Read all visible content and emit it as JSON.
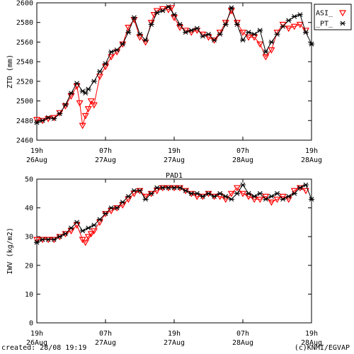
{
  "footer": {
    "created": "created: 28/08 19:19",
    "credit": "(c)KNMI/EGVAP"
  },
  "colors": {
    "series_a": "#ff0000",
    "series_b": "#000000"
  },
  "chart_data": [
    {
      "type": "line",
      "title": "",
      "ylabel": "ZTD (mm)",
      "xlabel": "",
      "xlim": [
        0,
        48
      ],
      "ylim": [
        2460,
        2600
      ],
      "yticks": [
        2460,
        2480,
        2500,
        2520,
        2540,
        2560,
        2580,
        2600
      ],
      "xticks": [
        {
          "x": 0,
          "top": "19h",
          "bottom": "26Aug"
        },
        {
          "x": 12,
          "top": "07h",
          "bottom": "27Aug"
        },
        {
          "x": 24,
          "top": "19h",
          "bottom": "27Aug"
        },
        {
          "x": 36,
          "top": "07h",
          "bottom": "28Aug"
        },
        {
          "x": 48,
          "top": "19h",
          "bottom": "28Aug"
        }
      ],
      "legend": {
        "placement": "top-right",
        "entries": [
          {
            "name": "ASI_",
            "marker": "triangle-down",
            "color": "#ff0000"
          },
          {
            "name": "_PT_",
            "marker": "asterisk",
            "color": "#000000"
          }
        ]
      },
      "series": [
        {
          "name": "ASI_",
          "marker": "triangle-down",
          "color": "#ff0000",
          "x": [
            0,
            1,
            2,
            3,
            4,
            5,
            6,
            7,
            7.5,
            8,
            8.5,
            9,
            9.5,
            10,
            11,
            12,
            13,
            14,
            15,
            16,
            17,
            18,
            19,
            20,
            20.5,
            21,
            22,
            23,
            23.5,
            24,
            25,
            26,
            27,
            28,
            29,
            30,
            31,
            32,
            33,
            34,
            35,
            36,
            37,
            38,
            39,
            40,
            41,
            42,
            43,
            44,
            45,
            46,
            47
          ],
          "y": [
            2481,
            2480,
            2482,
            2483,
            2488,
            2495,
            2505,
            2515,
            2498,
            2475,
            2485,
            2492,
            2500,
            2496,
            2525,
            2535,
            2545,
            2550,
            2558,
            2575,
            2583,
            2565,
            2560,
            2580,
            2588,
            2592,
            2594,
            2593,
            2595,
            2585,
            2575,
            2572,
            2570,
            2572,
            2568,
            2565,
            2562,
            2570,
            2580,
            2592,
            2580,
            2570,
            2565,
            2565,
            2558,
            2545,
            2552,
            2570,
            2578,
            2574,
            2576,
            2578,
            2572
          ]
        },
        {
          "name": "_PT_",
          "marker": "asterisk",
          "color": "#000000",
          "x": [
            0,
            1,
            2,
            3,
            4,
            5,
            6,
            7,
            8,
            8.5,
            9,
            10,
            11,
            12,
            13,
            14,
            15,
            16,
            17,
            18,
            19,
            20,
            21,
            22,
            23,
            24,
            25,
            26,
            27,
            28,
            29,
            30,
            31,
            32,
            33,
            34,
            35,
            36,
            37,
            38,
            39,
            40,
            41,
            42,
            43,
            44,
            45,
            46,
            47,
            48
          ],
          "y": [
            2478,
            2480,
            2483,
            2482,
            2487,
            2496,
            2508,
            2518,
            2510,
            2508,
            2512,
            2520,
            2530,
            2538,
            2550,
            2552,
            2558,
            2570,
            2585,
            2568,
            2562,
            2578,
            2590,
            2592,
            2596,
            2588,
            2578,
            2570,
            2572,
            2574,
            2566,
            2568,
            2562,
            2568,
            2578,
            2595,
            2578,
            2562,
            2570,
            2568,
            2572,
            2550,
            2560,
            2568,
            2576,
            2582,
            2586,
            2588,
            2570,
            2558
          ]
        }
      ]
    },
    {
      "type": "line",
      "title": "PAD1",
      "ylabel": "IWV (kg/m2)",
      "xlabel": "",
      "xlim": [
        0,
        48
      ],
      "ylim": [
        0,
        50
      ],
      "yticks": [
        0,
        10,
        20,
        30,
        40,
        50
      ],
      "xticks": [
        {
          "x": 0,
          "top": "19h",
          "bottom": "26Aug"
        },
        {
          "x": 12,
          "top": "07h",
          "bottom": "27Aug"
        },
        {
          "x": 24,
          "top": "19h",
          "bottom": "27Aug"
        },
        {
          "x": 36,
          "top": "07h",
          "bottom": "28Aug"
        },
        {
          "x": 48,
          "top": "19h",
          "bottom": "28Aug"
        }
      ],
      "series": [
        {
          "name": "ASI_",
          "marker": "triangle-down",
          "color": "#ff0000",
          "x": [
            0,
            1,
            2,
            3,
            4,
            5,
            6,
            7,
            8,
            8.5,
            9,
            9.5,
            10,
            11,
            12,
            13,
            14,
            15,
            16,
            17,
            18,
            19,
            20,
            21,
            22,
            23,
            24,
            25,
            26,
            27,
            28,
            29,
            30,
            31,
            32,
            33,
            34,
            35,
            36,
            37,
            38,
            39,
            40,
            41,
            42,
            43,
            44,
            45,
            46,
            47
          ],
          "y": [
            29,
            29,
            29,
            29,
            30,
            31,
            32,
            34,
            29,
            28,
            30,
            31,
            32,
            35,
            38,
            39,
            40,
            41,
            43,
            45,
            46,
            44,
            45,
            46,
            47,
            47,
            47,
            47,
            46,
            45,
            44,
            44,
            45,
            44,
            44,
            43,
            45,
            47,
            45,
            44,
            43,
            43,
            44,
            42,
            43,
            44,
            43,
            46,
            47,
            46
          ]
        },
        {
          "name": "_PT_",
          "marker": "asterisk",
          "color": "#000000",
          "x": [
            0,
            1,
            2,
            3,
            4,
            5,
            6,
            7,
            8,
            9,
            10,
            11,
            12,
            13,
            14,
            15,
            16,
            17,
            18,
            19,
            20,
            21,
            22,
            23,
            24,
            25,
            26,
            27,
            28,
            29,
            30,
            31,
            32,
            33,
            34,
            35,
            36,
            37,
            38,
            39,
            40,
            41,
            42,
            43,
            44,
            45,
            46,
            47,
            48
          ],
          "y": [
            28,
            29,
            29,
            29,
            30,
            31,
            33,
            35,
            32,
            33,
            34,
            36,
            38,
            40,
            40,
            42,
            44,
            46,
            46,
            43,
            45,
            47,
            47,
            47,
            47,
            47,
            46,
            45,
            45,
            44,
            45,
            44,
            45,
            44,
            43,
            45,
            48,
            45,
            44,
            45,
            43,
            44,
            45,
            43,
            44,
            45,
            47,
            48,
            43
          ]
        }
      ]
    }
  ]
}
